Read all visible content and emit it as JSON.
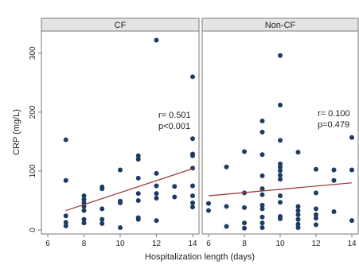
{
  "chart_data": [
    {
      "type": "scatter",
      "title": "CF",
      "xlabel": "Hospitalization length (days)",
      "ylabel": "CRP (mg/L)",
      "xlim": [
        6,
        14
      ],
      "ylim": [
        0,
        320
      ],
      "xticks": [
        6,
        8,
        10,
        12,
        14
      ],
      "yticks": [
        0,
        100,
        200,
        300
      ],
      "grid": false,
      "annotation": [
        "r= 0.501",
        "p<0.001"
      ],
      "fit": {
        "x": [
          7,
          14
        ],
        "y": [
          33,
          104
        ]
      },
      "points": [
        {
          "x": 7,
          "y": 153
        },
        {
          "x": 7,
          "y": 84
        },
        {
          "x": 7,
          "y": 24
        },
        {
          "x": 7,
          "y": 13
        },
        {
          "x": 7,
          "y": 7
        },
        {
          "x": 8,
          "y": 58
        },
        {
          "x": 8,
          "y": 52
        },
        {
          "x": 8,
          "y": 46
        },
        {
          "x": 8,
          "y": 40
        },
        {
          "x": 8,
          "y": 33
        },
        {
          "x": 8,
          "y": 18
        },
        {
          "x": 8,
          "y": 12
        },
        {
          "x": 9,
          "y": 73
        },
        {
          "x": 9,
          "y": 70
        },
        {
          "x": 9,
          "y": 36
        },
        {
          "x": 9,
          "y": 18
        },
        {
          "x": 9,
          "y": 11
        },
        {
          "x": 10,
          "y": 102
        },
        {
          "x": 10,
          "y": 49
        },
        {
          "x": 10,
          "y": 46
        },
        {
          "x": 10,
          "y": 4
        },
        {
          "x": 11,
          "y": 126
        },
        {
          "x": 11,
          "y": 120
        },
        {
          "x": 11,
          "y": 88
        },
        {
          "x": 11,
          "y": 62
        },
        {
          "x": 11,
          "y": 50
        },
        {
          "x": 11,
          "y": 21
        },
        {
          "x": 11,
          "y": 18
        },
        {
          "x": 12,
          "y": 322
        },
        {
          "x": 12,
          "y": 96
        },
        {
          "x": 12,
          "y": 75
        },
        {
          "x": 12,
          "y": 62
        },
        {
          "x": 12,
          "y": 54
        },
        {
          "x": 12,
          "y": 16
        },
        {
          "x": 13,
          "y": 74
        },
        {
          "x": 13,
          "y": 56
        },
        {
          "x": 14,
          "y": 260
        },
        {
          "x": 14,
          "y": 155
        },
        {
          "x": 14,
          "y": 129
        },
        {
          "x": 14,
          "y": 126
        },
        {
          "x": 14,
          "y": 105
        },
        {
          "x": 14,
          "y": 75
        },
        {
          "x": 14,
          "y": 58
        },
        {
          "x": 14,
          "y": 46
        },
        {
          "x": 14,
          "y": 39
        }
      ]
    },
    {
      "type": "scatter",
      "title": "Non-CF",
      "xlabel": "Hospitalization length (days)",
      "ylabel": "CRP (mg/L)",
      "xlim": [
        6,
        14
      ],
      "ylim": [
        0,
        320
      ],
      "xticks": [
        6,
        8,
        10,
        12,
        14
      ],
      "yticks": [
        0,
        100,
        200,
        300
      ],
      "grid": false,
      "annotation": [
        "r= 0.100",
        "p=0.479"
      ],
      "fit": {
        "x": [
          6,
          14
        ],
        "y": [
          58,
          80
        ]
      },
      "points": [
        {
          "x": 6,
          "y": 45
        },
        {
          "x": 6,
          "y": 33
        },
        {
          "x": 7,
          "y": 107
        },
        {
          "x": 7,
          "y": 40
        },
        {
          "x": 7,
          "y": 6
        },
        {
          "x": 8,
          "y": 133
        },
        {
          "x": 8,
          "y": 63
        },
        {
          "x": 8,
          "y": 38
        },
        {
          "x": 8,
          "y": 12
        },
        {
          "x": 8,
          "y": 3
        },
        {
          "x": 9,
          "y": 185
        },
        {
          "x": 9,
          "y": 166
        },
        {
          "x": 9,
          "y": 128
        },
        {
          "x": 9,
          "y": 92
        },
        {
          "x": 9,
          "y": 70
        },
        {
          "x": 9,
          "y": 60
        },
        {
          "x": 9,
          "y": 42
        },
        {
          "x": 9,
          "y": 36
        },
        {
          "x": 9,
          "y": 22
        },
        {
          "x": 9,
          "y": 12
        },
        {
          "x": 9,
          "y": 4
        },
        {
          "x": 10,
          "y": 296
        },
        {
          "x": 10,
          "y": 212
        },
        {
          "x": 10,
          "y": 152
        },
        {
          "x": 10,
          "y": 112
        },
        {
          "x": 10,
          "y": 107
        },
        {
          "x": 10,
          "y": 101
        },
        {
          "x": 10,
          "y": 93
        },
        {
          "x": 10,
          "y": 86
        },
        {
          "x": 10,
          "y": 58
        },
        {
          "x": 10,
          "y": 47
        },
        {
          "x": 10,
          "y": 23
        },
        {
          "x": 10,
          "y": 19
        },
        {
          "x": 11,
          "y": 132
        },
        {
          "x": 11,
          "y": 40
        },
        {
          "x": 11,
          "y": 33
        },
        {
          "x": 11,
          "y": 26
        },
        {
          "x": 11,
          "y": 18
        },
        {
          "x": 11,
          "y": 10
        },
        {
          "x": 11,
          "y": 4
        },
        {
          "x": 12,
          "y": 103
        },
        {
          "x": 12,
          "y": 63
        },
        {
          "x": 12,
          "y": 36
        },
        {
          "x": 12,
          "y": 26
        },
        {
          "x": 12,
          "y": 20
        },
        {
          "x": 12,
          "y": 9
        },
        {
          "x": 13,
          "y": 102
        },
        {
          "x": 13,
          "y": 84
        },
        {
          "x": 13,
          "y": 31
        },
        {
          "x": 14,
          "y": 157
        },
        {
          "x": 14,
          "y": 102
        },
        {
          "x": 14,
          "y": 16
        }
      ]
    }
  ],
  "colors": {
    "marker": "#1f3b63",
    "fit_line": "#a04040",
    "strip": "#e4e4e4",
    "frame": "#7a7a7a",
    "background": "#ffffff"
  }
}
